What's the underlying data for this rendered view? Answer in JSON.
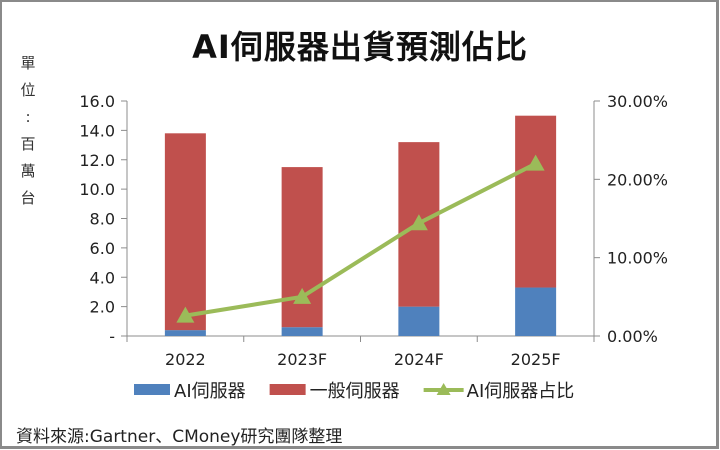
{
  "chart_data": {
    "type": "bar",
    "title": "AI伺服器出貨預測佔比",
    "ylabel": "單位:百萬台",
    "ylabel_chars": [
      "單",
      "位",
      ":",
      "百",
      "萬",
      "台"
    ],
    "xlabel": "",
    "categories": [
      "2022",
      "2023F",
      "2024F",
      "2025F"
    ],
    "stacked": true,
    "series": [
      {
        "name": "AI伺服器",
        "type": "bar",
        "axis": "left",
        "color": "#4f81bd",
        "values": [
          0.4,
          0.6,
          2.0,
          3.3
        ]
      },
      {
        "name": "一般伺服器",
        "type": "bar",
        "axis": "left",
        "color": "#c0504d",
        "values": [
          13.4,
          10.9,
          11.2,
          11.7
        ]
      },
      {
        "name": "AI伺服器占比",
        "type": "line",
        "axis": "right",
        "color": "#9bbb59",
        "marker": "triangle",
        "values": [
          2.6,
          5.0,
          14.4,
          22.0
        ]
      }
    ],
    "ylim": [
      0,
      16
    ],
    "y_ticks": [
      "-",
      "2.0",
      "4.0",
      "6.0",
      "8.0",
      "10.0",
      "12.0",
      "14.0",
      "16.0"
    ],
    "y2lim": [
      0,
      30
    ],
    "y2_ticks": [
      "0.00%",
      "10.00%",
      "20.00%",
      "30.00%"
    ],
    "grid": false,
    "legend_position": "bottom"
  },
  "source_note": "資料來源:Gartner、CMoney研究團隊整理"
}
